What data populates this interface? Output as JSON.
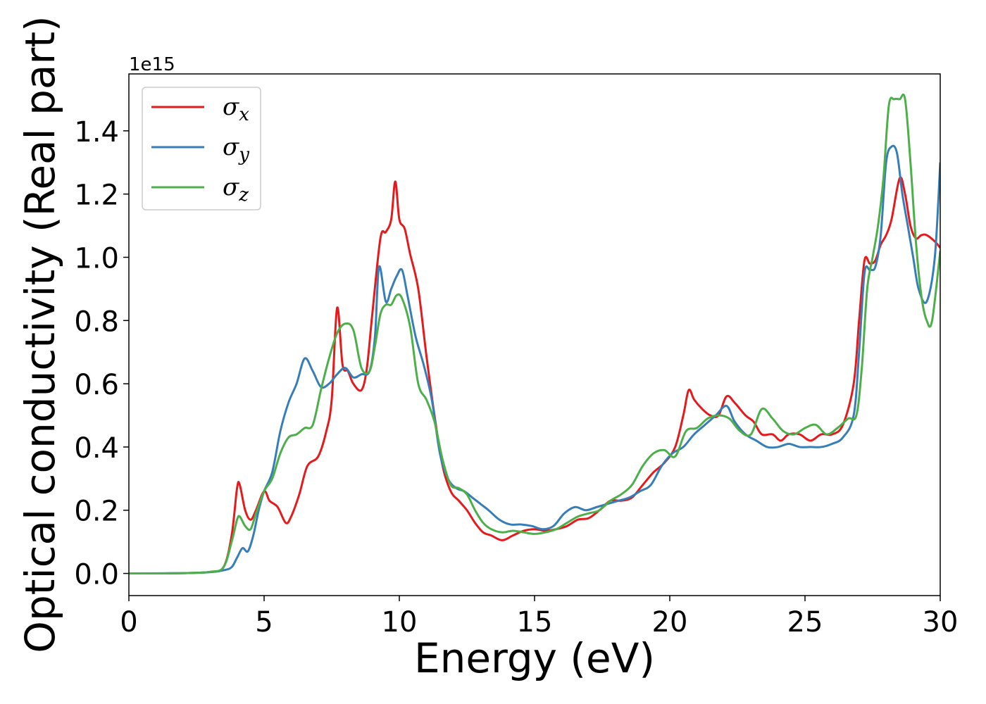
{
  "chart_data": {
    "type": "line",
    "xlabel": "Energy (eV)",
    "ylabel": "Optical conductivity (Real part)",
    "y_offset_text": "1e15",
    "xlim": [
      0,
      30
    ],
    "ylim": [
      -0.07,
      1.58
    ],
    "x_ticks": [
      0,
      5,
      10,
      15,
      20,
      25,
      30
    ],
    "x_tick_labels": [
      "0",
      "5",
      "10",
      "15",
      "20",
      "25",
      "30"
    ],
    "y_ticks": [
      0.0,
      0.2,
      0.4,
      0.6,
      0.8,
      1.0,
      1.2,
      1.4
    ],
    "y_tick_labels": [
      "0.0",
      "0.2",
      "0.4",
      "0.6",
      "0.8",
      "1.0",
      "1.2",
      "1.4"
    ],
    "grid": false,
    "legend_position": "top-left",
    "series": [
      {
        "name": "σx",
        "base": "σ",
        "sub": "x",
        "color": "#e41a1c",
        "x": [
          0,
          2,
          3,
          3.5,
          3.8,
          4.0,
          4.1,
          4.3,
          4.5,
          4.7,
          5.0,
          5.2,
          5.5,
          5.8,
          6.0,
          6.3,
          6.6,
          7.0,
          7.3,
          7.5,
          7.7,
          7.9,
          8.1,
          8.3,
          8.6,
          8.8,
          9.0,
          9.3,
          9.5,
          9.7,
          9.85,
          10.0,
          10.2,
          10.4,
          10.7,
          11.0,
          11.3,
          11.6,
          11.9,
          12.2,
          12.5,
          12.8,
          13.1,
          13.4,
          13.8,
          14.2,
          14.6,
          15.0,
          15.4,
          15.8,
          16.2,
          16.6,
          17.0,
          17.4,
          17.8,
          18.2,
          18.6,
          19.0,
          19.4,
          19.8,
          20.2,
          20.5,
          20.7,
          20.9,
          21.2,
          21.5,
          21.8,
          22.1,
          22.4,
          22.8,
          23.1,
          23.4,
          23.8,
          24.1,
          24.4,
          24.8,
          25.2,
          25.6,
          26.0,
          26.4,
          26.8,
          27.0,
          27.2,
          27.4,
          27.6,
          27.8,
          28.0,
          28.2,
          28.5,
          28.7,
          28.9,
          29.1,
          29.3,
          29.5,
          29.8,
          30.0
        ],
        "y": [
          0,
          0.001,
          0.005,
          0.02,
          0.12,
          0.27,
          0.28,
          0.2,
          0.17,
          0.2,
          0.26,
          0.23,
          0.21,
          0.16,
          0.18,
          0.25,
          0.34,
          0.37,
          0.45,
          0.55,
          0.84,
          0.66,
          0.64,
          0.6,
          0.58,
          0.65,
          0.82,
          1.06,
          1.08,
          1.12,
          1.24,
          1.12,
          1.09,
          1.01,
          0.9,
          0.69,
          0.5,
          0.34,
          0.26,
          0.23,
          0.2,
          0.16,
          0.13,
          0.12,
          0.105,
          0.12,
          0.135,
          0.14,
          0.135,
          0.14,
          0.15,
          0.17,
          0.175,
          0.2,
          0.23,
          0.23,
          0.24,
          0.28,
          0.32,
          0.35,
          0.4,
          0.5,
          0.58,
          0.55,
          0.52,
          0.5,
          0.5,
          0.56,
          0.54,
          0.5,
          0.48,
          0.44,
          0.44,
          0.42,
          0.44,
          0.44,
          0.42,
          0.44,
          0.44,
          0.47,
          0.6,
          0.8,
          0.99,
          0.98,
          0.99,
          1.04,
          1.07,
          1.12,
          1.25,
          1.2,
          1.1,
          1.06,
          1.07,
          1.07,
          1.05,
          1.03
        ]
      },
      {
        "name": "σy",
        "base": "σ",
        "sub": "y",
        "color": "#377eb8",
        "x": [
          0,
          2,
          3,
          3.5,
          3.8,
          4.0,
          4.2,
          4.4,
          4.6,
          4.8,
          5.0,
          5.3,
          5.6,
          5.9,
          6.2,
          6.5,
          6.8,
          7.1,
          7.4,
          7.7,
          8.0,
          8.3,
          8.6,
          8.9,
          9.1,
          9.25,
          9.5,
          9.7,
          9.9,
          10.1,
          10.3,
          10.6,
          10.9,
          11.2,
          11.5,
          11.8,
          12.1,
          12.4,
          12.7,
          13.0,
          13.3,
          13.7,
          14.1,
          14.5,
          14.9,
          15.3,
          15.7,
          16.1,
          16.5,
          16.9,
          17.3,
          17.7,
          18.1,
          18.5,
          18.9,
          19.3,
          19.7,
          20.1,
          20.5,
          20.9,
          21.3,
          21.7,
          22.1,
          22.4,
          22.8,
          23.2,
          23.6,
          24.0,
          24.4,
          24.8,
          25.2,
          25.6,
          26.0,
          26.4,
          26.8,
          27.0,
          27.2,
          27.4,
          27.6,
          27.8,
          28.0,
          28.2,
          28.4,
          28.6,
          28.8,
          29.0,
          29.2,
          29.5,
          29.8,
          30.0
        ],
        "y": [
          0,
          0.001,
          0.004,
          0.01,
          0.02,
          0.05,
          0.08,
          0.07,
          0.12,
          0.2,
          0.26,
          0.32,
          0.45,
          0.54,
          0.6,
          0.68,
          0.64,
          0.59,
          0.6,
          0.63,
          0.65,
          0.62,
          0.63,
          0.64,
          0.75,
          0.97,
          0.86,
          0.9,
          0.94,
          0.96,
          0.88,
          0.75,
          0.66,
          0.55,
          0.38,
          0.3,
          0.27,
          0.26,
          0.24,
          0.22,
          0.2,
          0.17,
          0.155,
          0.155,
          0.15,
          0.14,
          0.15,
          0.19,
          0.21,
          0.2,
          0.21,
          0.22,
          0.23,
          0.24,
          0.26,
          0.28,
          0.34,
          0.38,
          0.4,
          0.44,
          0.47,
          0.5,
          0.53,
          0.48,
          0.44,
          0.42,
          0.4,
          0.4,
          0.41,
          0.4,
          0.4,
          0.4,
          0.41,
          0.43,
          0.5,
          0.7,
          0.95,
          0.96,
          0.97,
          1.07,
          1.3,
          1.35,
          1.33,
          1.2,
          1.1,
          1.0,
          0.9,
          0.86,
          1.0,
          1.3
        ]
      },
      {
        "name": "σz",
        "base": "σ",
        "sub": "z",
        "color": "#4daf4a",
        "x": [
          0,
          2,
          3,
          3.5,
          3.8,
          4.0,
          4.1,
          4.3,
          4.5,
          4.7,
          5.0,
          5.3,
          5.6,
          5.9,
          6.2,
          6.5,
          6.8,
          7.1,
          7.4,
          7.7,
          8.0,
          8.3,
          8.6,
          8.9,
          9.1,
          9.3,
          9.5,
          9.7,
          9.9,
          10.1,
          10.4,
          10.7,
          11.0,
          11.3,
          11.6,
          11.9,
          12.2,
          12.5,
          12.8,
          13.1,
          13.4,
          13.8,
          14.2,
          14.6,
          15.0,
          15.4,
          15.8,
          16.2,
          16.6,
          17.0,
          17.4,
          17.8,
          18.2,
          18.6,
          19.0,
          19.4,
          19.8,
          20.2,
          20.6,
          21.0,
          21.4,
          21.8,
          22.2,
          22.6,
          23.0,
          23.4,
          23.8,
          24.2,
          24.6,
          25.0,
          25.4,
          25.8,
          26.2,
          26.6,
          26.9,
          27.1,
          27.3,
          27.5,
          27.7,
          27.9,
          28.1,
          28.3,
          28.5,
          28.7,
          28.9,
          29.1,
          29.3,
          29.5,
          29.7,
          30.0
        ],
        "y": [
          0,
          0.001,
          0.005,
          0.02,
          0.1,
          0.17,
          0.18,
          0.15,
          0.14,
          0.19,
          0.26,
          0.3,
          0.38,
          0.43,
          0.44,
          0.46,
          0.47,
          0.58,
          0.68,
          0.76,
          0.79,
          0.77,
          0.65,
          0.64,
          0.72,
          0.82,
          0.85,
          0.85,
          0.88,
          0.87,
          0.78,
          0.6,
          0.55,
          0.48,
          0.36,
          0.28,
          0.27,
          0.25,
          0.2,
          0.16,
          0.14,
          0.13,
          0.135,
          0.13,
          0.125,
          0.13,
          0.14,
          0.16,
          0.18,
          0.19,
          0.2,
          0.23,
          0.25,
          0.28,
          0.34,
          0.38,
          0.39,
          0.37,
          0.45,
          0.46,
          0.49,
          0.5,
          0.49,
          0.45,
          0.44,
          0.52,
          0.49,
          0.45,
          0.44,
          0.46,
          0.47,
          0.44,
          0.46,
          0.49,
          0.5,
          0.65,
          0.9,
          1.0,
          1.1,
          1.25,
          1.48,
          1.5,
          1.5,
          1.5,
          1.3,
          1.05,
          0.88,
          0.8,
          0.8,
          1.02
        ]
      }
    ]
  }
}
